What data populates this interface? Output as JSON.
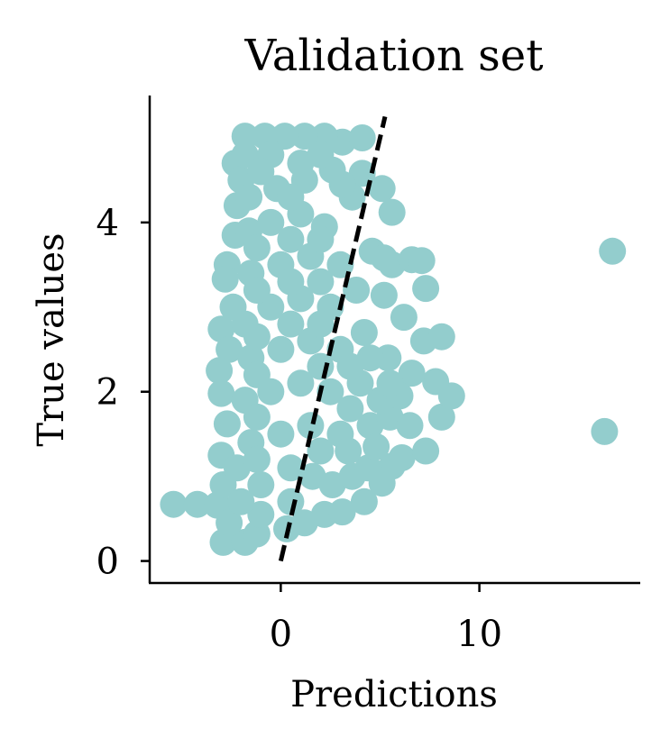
{
  "chart_data": {
    "type": "scatter",
    "title": "Validation set",
    "xlabel": "Predictions",
    "ylabel": "True values",
    "xlim": [
      -6.6,
      18.1
    ],
    "ylim": [
      -0.26,
      5.5
    ],
    "xticks": [
      0,
      10
    ],
    "yticks": [
      0,
      2,
      4
    ],
    "xtick_labels": [
      "0",
      "10"
    ],
    "ytick_labels": [
      "0",
      "2",
      "4"
    ],
    "grid": false,
    "point_color": "#93CDCD",
    "reference_line": {
      "x": [
        0,
        5.25
      ],
      "y": [
        0,
        5.25
      ],
      "style": "dashed",
      "color": "#000000"
    },
    "points": [
      {
        "x": -5.4,
        "y": 0.67
      },
      {
        "x": -4.2,
        "y": 0.67
      },
      {
        "x": -3.2,
        "y": 0.66
      },
      {
        "x": -2.9,
        "y": 0.22
      },
      {
        "x": -1.8,
        "y": 0.22
      },
      {
        "x": -2.6,
        "y": 0.45
      },
      {
        "x": -1.2,
        "y": 0.32
      },
      {
        "x": 0.3,
        "y": 0.38
      },
      {
        "x": 1.2,
        "y": 0.45
      },
      {
        "x": 2.2,
        "y": 0.55
      },
      {
        "x": 3.1,
        "y": 0.58
      },
      {
        "x": 4.2,
        "y": 0.7
      },
      {
        "x": 5.1,
        "y": 0.92
      },
      {
        "x": 5.6,
        "y": 1.12
      },
      {
        "x": 6.1,
        "y": 1.22
      },
      {
        "x": 7.3,
        "y": 1.3
      },
      {
        "x": 8.1,
        "y": 1.7
      },
      {
        "x": 8.6,
        "y": 1.95
      },
      {
        "x": 7.8,
        "y": 2.12
      },
      {
        "x": 6.6,
        "y": 2.22
      },
      {
        "x": 5.4,
        "y": 2.4
      },
      {
        "x": 7.2,
        "y": 2.6
      },
      {
        "x": 8.1,
        "y": 2.65
      },
      {
        "x": 6.2,
        "y": 2.88
      },
      {
        "x": 5.2,
        "y": 3.14
      },
      {
        "x": 7.3,
        "y": 3.22
      },
      {
        "x": 5.6,
        "y": 3.5
      },
      {
        "x": 6.6,
        "y": 3.56
      },
      {
        "x": 7.1,
        "y": 3.55
      },
      {
        "x": 4.6,
        "y": 3.66
      },
      {
        "x": 5.2,
        "y": 3.58
      },
      {
        "x": 5.6,
        "y": 4.12
      },
      {
        "x": 5.1,
        "y": 4.4
      },
      {
        "x": 4.1,
        "y": 4.58
      },
      {
        "x": 3.6,
        "y": 4.3
      },
      {
        "x": 3.1,
        "y": 4.45
      },
      {
        "x": 2.6,
        "y": 4.62
      },
      {
        "x": 3.1,
        "y": 4.95
      },
      {
        "x": 4.1,
        "y": 5.0
      },
      {
        "x": 2.2,
        "y": 5.02
      },
      {
        "x": 1.2,
        "y": 5.02
      },
      {
        "x": 0.2,
        "y": 5.02
      },
      {
        "x": -0.8,
        "y": 5.02
      },
      {
        "x": -1.8,
        "y": 5.02
      },
      {
        "x": -2.3,
        "y": 4.7
      },
      {
        "x": -2.0,
        "y": 4.5
      },
      {
        "x": -2.2,
        "y": 4.2
      },
      {
        "x": -2.3,
        "y": 3.85
      },
      {
        "x": -2.7,
        "y": 3.5
      },
      {
        "x": -2.8,
        "y": 3.33
      },
      {
        "x": -2.4,
        "y": 3.0
      },
      {
        "x": -3.0,
        "y": 2.74
      },
      {
        "x": -2.6,
        "y": 2.5
      },
      {
        "x": -3.1,
        "y": 2.25
      },
      {
        "x": -3.0,
        "y": 1.98
      },
      {
        "x": -2.7,
        "y": 1.62
      },
      {
        "x": -3.0,
        "y": 1.25
      },
      {
        "x": -2.9,
        "y": 0.9
      },
      {
        "x": -1.0,
        "y": 0.9
      },
      {
        "x": 0.5,
        "y": 1.1
      },
      {
        "x": 1.6,
        "y": 1.0
      },
      {
        "x": 2.6,
        "y": 0.9
      },
      {
        "x": 3.6,
        "y": 1.0
      },
      {
        "x": 4.4,
        "y": 1.1
      },
      {
        "x": -1.5,
        "y": 1.4
      },
      {
        "x": 0.0,
        "y": 1.5
      },
      {
        "x": 1.5,
        "y": 1.6
      },
      {
        "x": 3.0,
        "y": 1.5
      },
      {
        "x": 4.5,
        "y": 1.6
      },
      {
        "x": 5.5,
        "y": 1.7
      },
      {
        "x": 6.5,
        "y": 1.6
      },
      {
        "x": -1.8,
        "y": 1.9
      },
      {
        "x": -0.5,
        "y": 2.0
      },
      {
        "x": 1.0,
        "y": 2.1
      },
      {
        "x": 2.5,
        "y": 2.0
      },
      {
        "x": 4.0,
        "y": 2.1
      },
      {
        "x": 5.0,
        "y": 1.9
      },
      {
        "x": 6.0,
        "y": 1.95
      },
      {
        "x": -1.5,
        "y": 2.4
      },
      {
        "x": 0.0,
        "y": 2.5
      },
      {
        "x": 1.5,
        "y": 2.6
      },
      {
        "x": 3.0,
        "y": 2.5
      },
      {
        "x": 4.2,
        "y": 2.7
      },
      {
        "x": -1.8,
        "y": 2.8
      },
      {
        "x": -0.5,
        "y": 3.0
      },
      {
        "x": 1.0,
        "y": 3.1
      },
      {
        "x": 2.5,
        "y": 3.0
      },
      {
        "x": 3.8,
        "y": 3.2
      },
      {
        "x": -1.5,
        "y": 3.4
      },
      {
        "x": 0.0,
        "y": 3.5
      },
      {
        "x": 1.5,
        "y": 3.6
      },
      {
        "x": 3.0,
        "y": 3.5
      },
      {
        "x": -1.6,
        "y": 3.9
      },
      {
        "x": -0.5,
        "y": 4.0
      },
      {
        "x": 1.0,
        "y": 4.1
      },
      {
        "x": 2.2,
        "y": 3.95
      },
      {
        "x": -1.6,
        "y": 4.3
      },
      {
        "x": -0.2,
        "y": 4.4
      },
      {
        "x": 1.2,
        "y": 4.5
      },
      {
        "x": -1.8,
        "y": 4.8
      },
      {
        "x": -0.5,
        "y": 4.8
      },
      {
        "x": 1.0,
        "y": 4.7
      },
      {
        "x": 2.0,
        "y": 4.8
      },
      {
        "x": -1.0,
        "y": 0.55
      },
      {
        "x": 0.5,
        "y": 0.7
      },
      {
        "x": -2.0,
        "y": 0.7
      },
      {
        "x": -2.2,
        "y": 1.1
      },
      {
        "x": 2.0,
        "y": 1.3
      },
      {
        "x": 3.4,
        "y": 1.3
      },
      {
        "x": 4.8,
        "y": 1.35
      },
      {
        "x": 2.0,
        "y": 2.3
      },
      {
        "x": 3.5,
        "y": 2.3
      },
      {
        "x": 2.0,
        "y": 2.8
      },
      {
        "x": 0.5,
        "y": 2.8
      },
      {
        "x": 2.0,
        "y": 3.3
      },
      {
        "x": 0.5,
        "y": 3.3
      },
      {
        "x": 2.0,
        "y": 3.8
      },
      {
        "x": 0.5,
        "y": 3.8
      },
      {
        "x": 0.5,
        "y": 4.3
      },
      {
        "x": -1.0,
        "y": 4.6
      },
      {
        "x": -1.2,
        "y": 2.2
      },
      {
        "x": -1.2,
        "y": 1.7
      },
      {
        "x": -1.2,
        "y": 1.2
      },
      {
        "x": -1.2,
        "y": 2.65
      },
      {
        "x": -1.2,
        "y": 3.2
      },
      {
        "x": -1.2,
        "y": 3.7
      },
      {
        "x": 3.5,
        "y": 1.8
      },
      {
        "x": 4.5,
        "y": 2.4
      },
      {
        "x": 5.5,
        "y": 2.1
      },
      {
        "x": 16.7,
        "y": 3.66
      },
      {
        "x": 16.3,
        "y": 1.53
      }
    ]
  }
}
